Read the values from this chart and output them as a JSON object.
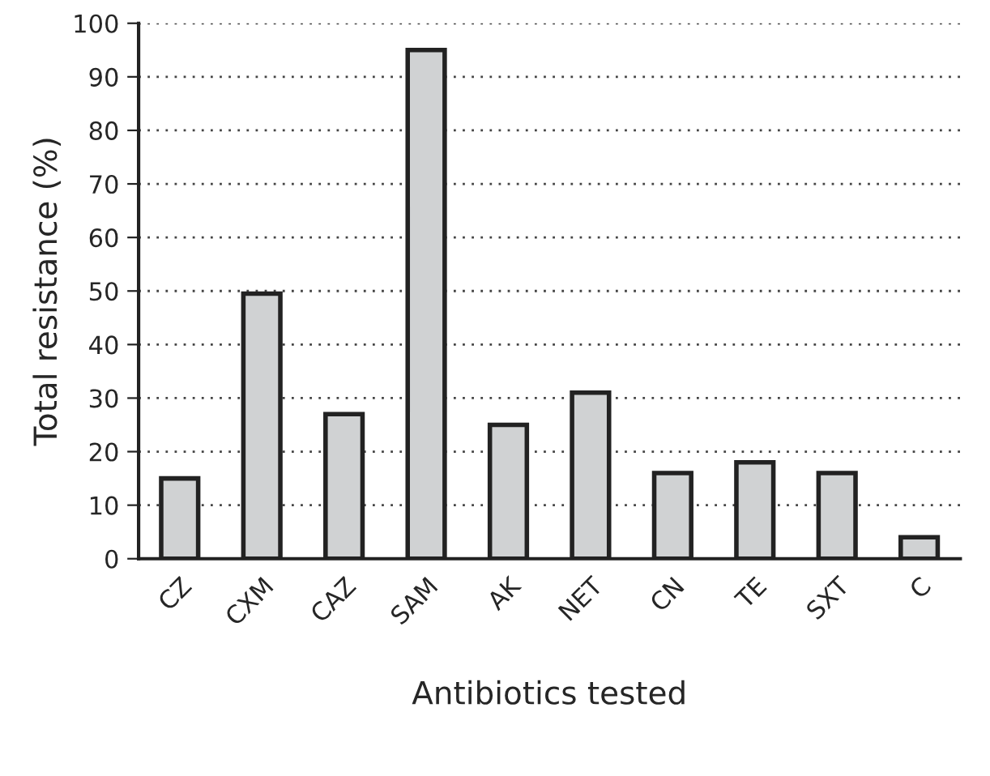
{
  "chart_data": {
    "type": "bar",
    "xlabel": "Antibiotics tested",
    "ylabel": "Total resistance (%)",
    "categories": [
      "CZ",
      "CXM",
      "CAZ",
      "SAM",
      "AK",
      "NET",
      "CN",
      "TE",
      "SXT",
      "C"
    ],
    "values": [
      15,
      49.5,
      27,
      95,
      25,
      31,
      16,
      18,
      16,
      4
    ],
    "color": "#d0d2d3",
    "ylim": [
      0,
      100
    ],
    "yticks": [
      0,
      10,
      20,
      30,
      40,
      50,
      60,
      70,
      80,
      90,
      100
    ],
    "grid": "y",
    "legend": false
  }
}
